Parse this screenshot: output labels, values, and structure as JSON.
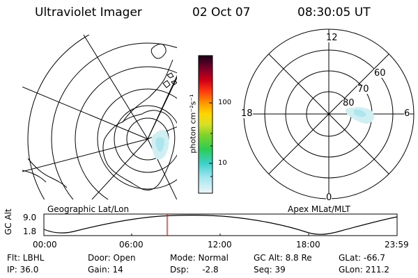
{
  "header": {
    "title": "Ultraviolet Imager",
    "date": "02 Oct 07",
    "time": "08:30:05 UT"
  },
  "colorbar": {
    "label": "photon cm⁻²s⁻¹",
    "tick_labels": [
      "100",
      "10"
    ]
  },
  "polar_plot": {
    "labels": [
      "12",
      "18",
      "6",
      "0"
    ],
    "lat_labels": [
      "60",
      "70",
      "80"
    ]
  },
  "panel_labels": {
    "left": "Geographic Lat/Lon",
    "right": "Apex MLat/MLT"
  },
  "altitude_plot": {
    "ylabel": "GC Alt",
    "y_ticks": [
      "9.0",
      "1.8"
    ],
    "x_ticks": [
      "00:00",
      "06:00",
      "12:00",
      "18:00",
      "23:59"
    ],
    "current_time_marker": "08:30:05",
    "marker_color": "#ff0000"
  },
  "info": {
    "row1": [
      "Flt: LBHL",
      "Door: Open",
      "Mode: Normal",
      "GC Alt: 8.8 Re",
      "GLat: -66.7"
    ],
    "row2": [
      "IP: 36.0",
      "Gain: 14",
      "Dsp:     -2.8",
      "Seq: 39",
      "GLon: 211.2"
    ]
  }
}
